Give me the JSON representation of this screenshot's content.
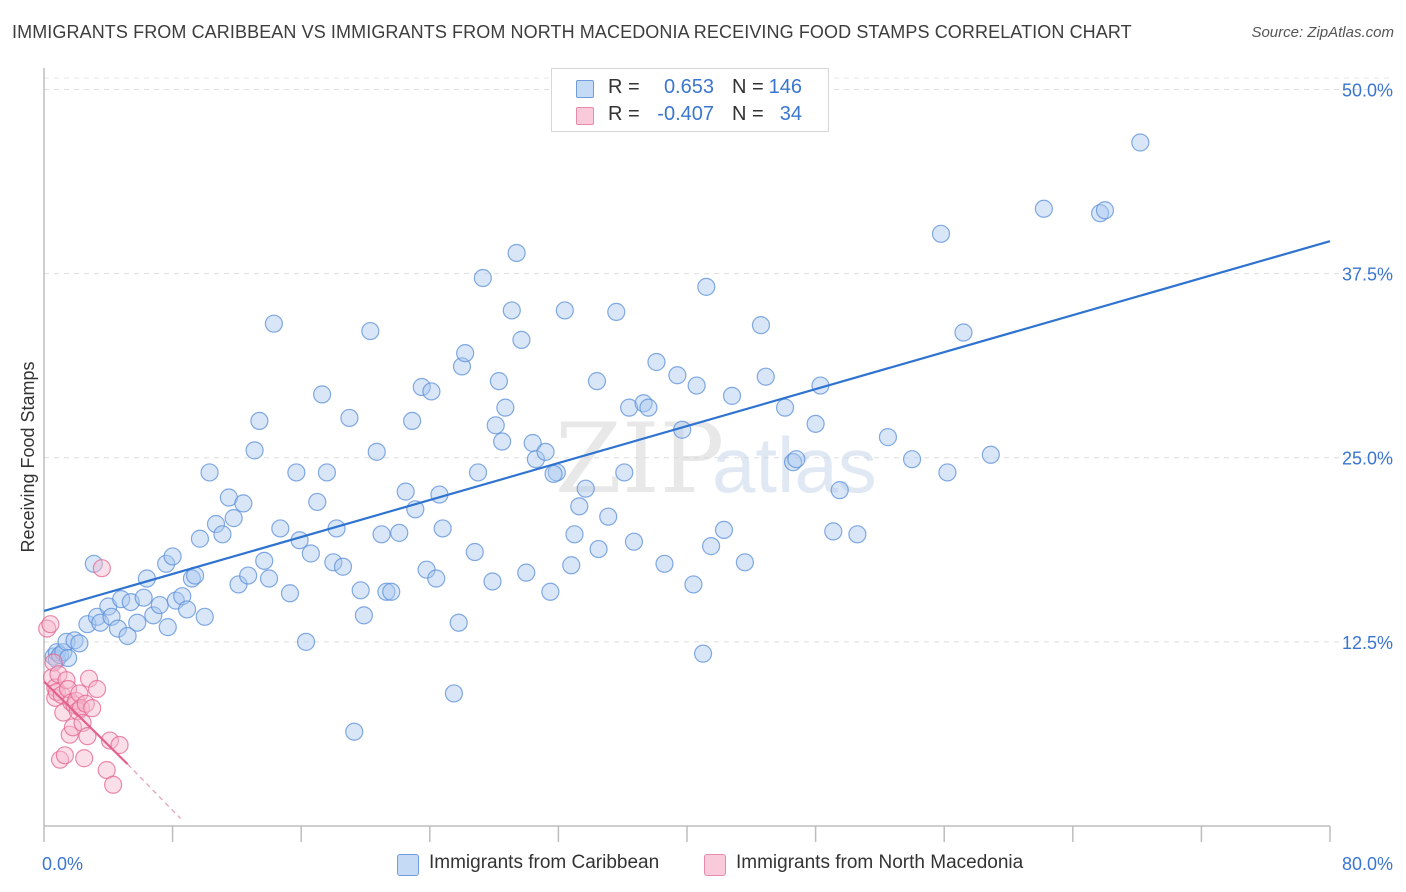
{
  "title": "IMMIGRANTS FROM CARIBBEAN VS IMMIGRANTS FROM NORTH MACEDONIA RECEIVING FOOD STAMPS CORRELATION CHART",
  "source": "Source: ZipAtlas.com",
  "watermark": {
    "zip": "ZIP",
    "atlas": "atlas"
  },
  "legend_top": {
    "rows": [
      {
        "r_label": "R =",
        "r_value": "0.653",
        "n_label": "N =",
        "n_value": "146",
        "color": "#a9c8f0"
      },
      {
        "r_label": "R =",
        "r_value": "-0.407",
        "n_label": "N =",
        "n_value": "34",
        "color": "#f7b7cb"
      }
    ]
  },
  "chart_data": {
    "type": "scatter",
    "title": "",
    "xlabel": "",
    "ylabel": "Receiving Food Stamps",
    "xlim": [
      0,
      80
    ],
    "ylim": [
      0,
      52
    ],
    "x_tick_labels": [
      {
        "value": 0,
        "label": "0.0%"
      },
      {
        "value": 80,
        "label": "80.0%"
      }
    ],
    "y_tick_labels": [
      {
        "value": 12.5,
        "label": "12.5%"
      },
      {
        "value": 25,
        "label": "25.0%"
      },
      {
        "value": 37.5,
        "label": "37.5%"
      },
      {
        "value": 50,
        "label": "50.0%"
      }
    ],
    "x_minor_ticks": [
      0,
      8,
      16,
      24,
      32,
      40,
      48,
      56,
      64,
      72,
      80
    ],
    "grid": "horizontal dashed",
    "legend_position": "bottom",
    "series": [
      {
        "name": "Immigrants from Caribbean",
        "color": "#5b8fd8",
        "fill": "#a9c8f0",
        "r": 0.653,
        "n": 146,
        "trend": {
          "x": [
            0,
            80
          ],
          "y": [
            14.6,
            39.7
          ]
        },
        "points": [
          [
            0.6,
            11.5
          ],
          [
            0.8,
            11.3
          ],
          [
            0.8,
            11.8
          ],
          [
            1.0,
            11.6
          ],
          [
            1.2,
            11.8
          ],
          [
            1.4,
            12.5
          ],
          [
            1.5,
            11.4
          ],
          [
            1.9,
            12.6
          ],
          [
            2.2,
            12.4
          ],
          [
            2.7,
            13.7
          ],
          [
            3.1,
            17.8
          ],
          [
            3.3,
            14.2
          ],
          [
            3.5,
            13.8
          ],
          [
            4.0,
            14.9
          ],
          [
            4.2,
            14.2
          ],
          [
            4.6,
            13.4
          ],
          [
            4.8,
            15.4
          ],
          [
            5.2,
            12.9
          ],
          [
            5.4,
            15.2
          ],
          [
            5.8,
            13.8
          ],
          [
            6.2,
            15.5
          ],
          [
            6.4,
            16.8
          ],
          [
            6.8,
            14.3
          ],
          [
            7.2,
            15.0
          ],
          [
            7.6,
            17.8
          ],
          [
            7.7,
            13.5
          ],
          [
            8.0,
            18.3
          ],
          [
            8.2,
            15.3
          ],
          [
            8.6,
            15.6
          ],
          [
            8.9,
            14.7
          ],
          [
            9.2,
            16.8
          ],
          [
            9.4,
            17.0
          ],
          [
            9.7,
            19.5
          ],
          [
            10.0,
            14.2
          ],
          [
            10.3,
            24.0
          ],
          [
            10.7,
            20.5
          ],
          [
            11.1,
            19.8
          ],
          [
            11.5,
            22.3
          ],
          [
            11.8,
            20.9
          ],
          [
            12.1,
            16.4
          ],
          [
            12.4,
            21.9
          ],
          [
            12.7,
            17.0
          ],
          [
            13.1,
            25.5
          ],
          [
            13.4,
            27.5
          ],
          [
            13.7,
            18.0
          ],
          [
            14.0,
            16.8
          ],
          [
            14.3,
            34.1
          ],
          [
            14.7,
            20.2
          ],
          [
            15.3,
            15.8
          ],
          [
            15.7,
            24.0
          ],
          [
            15.9,
            19.4
          ],
          [
            16.3,
            12.5
          ],
          [
            16.6,
            18.5
          ],
          [
            17.0,
            22.0
          ],
          [
            17.3,
            29.3
          ],
          [
            17.6,
            24.0
          ],
          [
            18.0,
            17.9
          ],
          [
            18.2,
            20.2
          ],
          [
            18.6,
            17.6
          ],
          [
            19.0,
            27.7
          ],
          [
            19.3,
            6.4
          ],
          [
            19.7,
            16.0
          ],
          [
            19.9,
            14.3
          ],
          [
            20.3,
            33.6
          ],
          [
            20.7,
            25.4
          ],
          [
            21.0,
            19.8
          ],
          [
            21.3,
            15.9
          ],
          [
            21.6,
            15.9
          ],
          [
            22.1,
            19.9
          ],
          [
            22.5,
            22.7
          ],
          [
            22.9,
            27.5
          ],
          [
            23.1,
            21.5
          ],
          [
            23.5,
            29.8
          ],
          [
            23.8,
            17.4
          ],
          [
            24.1,
            29.5
          ],
          [
            24.4,
            16.8
          ],
          [
            24.6,
            22.5
          ],
          [
            24.8,
            20.2
          ],
          [
            25.5,
            9.0
          ],
          [
            25.8,
            13.8
          ],
          [
            26.0,
            31.2
          ],
          [
            26.2,
            32.1
          ],
          [
            26.8,
            18.6
          ],
          [
            27.0,
            24.0
          ],
          [
            27.3,
            37.2
          ],
          [
            27.9,
            16.6
          ],
          [
            28.1,
            27.2
          ],
          [
            28.3,
            30.2
          ],
          [
            28.5,
            26.1
          ],
          [
            28.7,
            28.4
          ],
          [
            29.1,
            35.0
          ],
          [
            29.4,
            38.9
          ],
          [
            29.7,
            33.0
          ],
          [
            30.0,
            17.2
          ],
          [
            30.4,
            26.0
          ],
          [
            30.6,
            24.9
          ],
          [
            31.2,
            25.4
          ],
          [
            31.5,
            15.9
          ],
          [
            31.9,
            24.0
          ],
          [
            32.4,
            35.0
          ],
          [
            32.8,
            17.7
          ],
          [
            33.0,
            19.8
          ],
          [
            33.3,
            21.7
          ],
          [
            33.7,
            22.9
          ],
          [
            34.4,
            30.2
          ],
          [
            34.5,
            18.8
          ],
          [
            35.1,
            21.0
          ],
          [
            35.6,
            34.9
          ],
          [
            36.1,
            24.0
          ],
          [
            36.4,
            28.4
          ],
          [
            36.7,
            19.3
          ],
          [
            37.3,
            28.7
          ],
          [
            37.6,
            28.4
          ],
          [
            38.1,
            31.5
          ],
          [
            38.6,
            17.8
          ],
          [
            39.4,
            30.6
          ],
          [
            39.7,
            26.9
          ],
          [
            40.4,
            16.4
          ],
          [
            40.6,
            29.9
          ],
          [
            41.0,
            11.7
          ],
          [
            41.2,
            36.6
          ],
          [
            41.5,
            19.0
          ],
          [
            42.3,
            20.1
          ],
          [
            42.8,
            29.2
          ],
          [
            43.6,
            17.9
          ],
          [
            44.6,
            34.0
          ],
          [
            44.9,
            30.5
          ],
          [
            46.1,
            28.4
          ],
          [
            46.6,
            24.7
          ],
          [
            46.8,
            24.9
          ],
          [
            48.0,
            27.3
          ],
          [
            48.3,
            29.9
          ],
          [
            49.1,
            20.0
          ],
          [
            49.5,
            22.8
          ],
          [
            50.6,
            19.8
          ],
          [
            52.5,
            26.4
          ],
          [
            54.0,
            24.9
          ],
          [
            55.8,
            40.2
          ],
          [
            56.2,
            24.0
          ],
          [
            57.2,
            33.5
          ],
          [
            58.9,
            25.2
          ],
          [
            62.2,
            41.9
          ],
          [
            65.7,
            41.6
          ],
          [
            66.0,
            41.8
          ],
          [
            68.2,
            46.4
          ],
          [
            31.7,
            23.9
          ]
        ]
      },
      {
        "name": "Immigrants from North Macedonia",
        "color": "#e46590",
        "fill": "#f7b7cb",
        "r": -0.407,
        "n": 34,
        "trend": {
          "x": [
            0,
            5.2
          ],
          "y": [
            9.8,
            4.2
          ]
        },
        "trend_extension": {
          "x": [
            5.2,
            8.5
          ],
          "y": [
            4.2,
            0.5
          ]
        },
        "points": [
          [
            0.2,
            13.4
          ],
          [
            0.4,
            13.7
          ],
          [
            0.5,
            10.1
          ],
          [
            0.6,
            11.1
          ],
          [
            0.7,
            9.4
          ],
          [
            0.7,
            8.7
          ],
          [
            0.8,
            9.1
          ],
          [
            0.9,
            10.3
          ],
          [
            1.0,
            4.5
          ],
          [
            1.1,
            8.9
          ],
          [
            1.2,
            7.7
          ],
          [
            1.3,
            4.8
          ],
          [
            1.4,
            9.9
          ],
          [
            1.5,
            9.3
          ],
          [
            1.6,
            6.2
          ],
          [
            1.7,
            8.4
          ],
          [
            1.8,
            6.7
          ],
          [
            1.9,
            8.2
          ],
          [
            2.0,
            8.5
          ],
          [
            2.1,
            7.8
          ],
          [
            2.2,
            9.0
          ],
          [
            2.3,
            8.0
          ],
          [
            2.4,
            7.0
          ],
          [
            2.5,
            4.6
          ],
          [
            2.6,
            8.3
          ],
          [
            2.7,
            6.1
          ],
          [
            2.8,
            10.0
          ],
          [
            3.0,
            8.0
          ],
          [
            3.3,
            9.3
          ],
          [
            3.6,
            17.5
          ],
          [
            3.9,
            3.8
          ],
          [
            4.1,
            5.8
          ],
          [
            4.3,
            2.8
          ],
          [
            4.7,
            5.5
          ]
        ]
      }
    ]
  },
  "legend_bottom": [
    {
      "label": "Immigrants from Caribbean",
      "color": "#a9c8f0",
      "border": "#5b8fd8"
    },
    {
      "label": "Immigrants from North Macedonia",
      "color": "#f7b7cb",
      "border": "#e46590"
    }
  ]
}
